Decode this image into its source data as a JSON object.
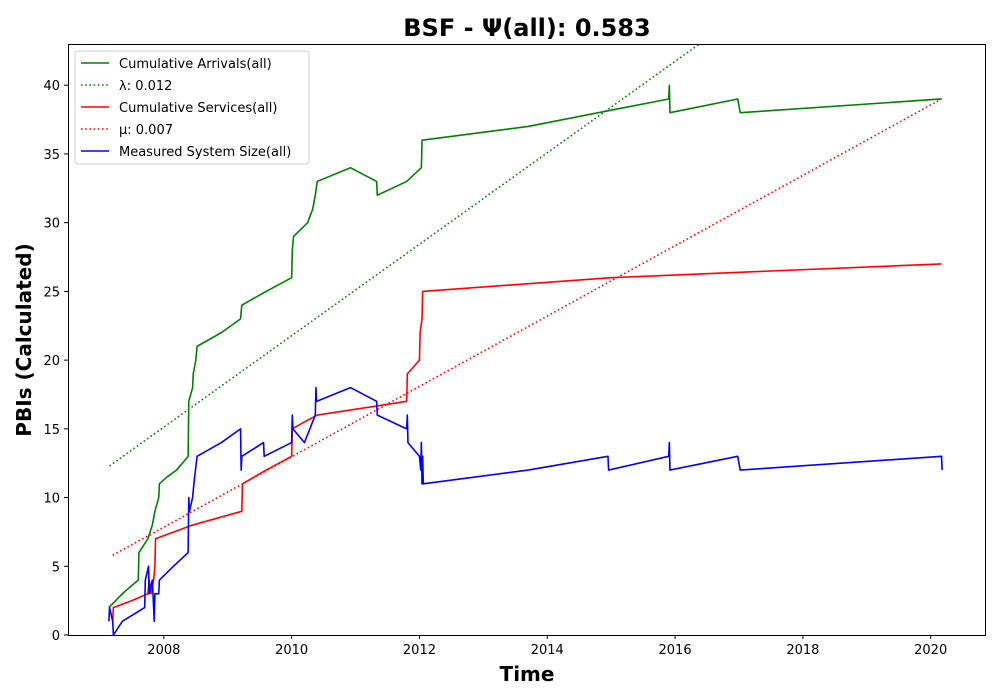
{
  "chart_data": {
    "type": "line",
    "title": "BSF -  Ψ(all): 0.583",
    "xlabel": "Time",
    "ylabel": "PBIs (Calculated)",
    "xlim": [
      2006.5,
      2020.85
    ],
    "ylim": [
      0,
      43
    ],
    "xticks": [
      2008,
      2010,
      2012,
      2014,
      2016,
      2018,
      2020
    ],
    "xtick_labels": [
      "2008",
      "2010",
      "2012",
      "2014",
      "2016",
      "2018",
      "2020"
    ],
    "yticks": [
      0,
      5,
      10,
      15,
      20,
      25,
      30,
      35,
      40
    ],
    "ytick_labels": [
      "0",
      "5",
      "10",
      "15",
      "20",
      "25",
      "30",
      "35",
      "40"
    ],
    "grid": false,
    "legend_position": "upper left",
    "series": [
      {
        "name": "Cumulative Arrivals(all)",
        "color": "#008000",
        "style": "solid",
        "points": [
          [
            2007.14,
            2
          ],
          [
            2007.35,
            3
          ],
          [
            2007.6,
            4
          ],
          [
            2007.61,
            6
          ],
          [
            2007.75,
            7
          ],
          [
            2007.82,
            8
          ],
          [
            2007.86,
            9
          ],
          [
            2007.92,
            10
          ],
          [
            2007.93,
            11
          ],
          [
            2008.05,
            11.5
          ],
          [
            2008.2,
            12
          ],
          [
            2008.38,
            13
          ],
          [
            2008.39,
            17
          ],
          [
            2008.45,
            18
          ],
          [
            2008.46,
            19
          ],
          [
            2008.5,
            20
          ],
          [
            2008.52,
            21
          ],
          [
            2008.9,
            22
          ],
          [
            2009.2,
            23
          ],
          [
            2009.22,
            24
          ],
          [
            2009.6,
            25
          ],
          [
            2010.0,
            26
          ],
          [
            2010.01,
            28
          ],
          [
            2010.03,
            29
          ],
          [
            2010.25,
            30
          ],
          [
            2010.33,
            31
          ],
          [
            2010.37,
            32
          ],
          [
            2010.4,
            33
          ],
          [
            2010.92,
            34
          ],
          [
            2011.33,
            33
          ],
          [
            2011.34,
            32
          ],
          [
            2011.8,
            33
          ],
          [
            2012.03,
            34
          ],
          [
            2012.04,
            36
          ],
          [
            2013.7,
            37
          ],
          [
            2015.9,
            39
          ],
          [
            2015.91,
            40
          ],
          [
            2015.92,
            38
          ],
          [
            2016.98,
            39
          ],
          [
            2017.02,
            38
          ],
          [
            2020.17,
            39
          ]
        ]
      },
      {
        "name": "λ: 0.012",
        "color": "#008000",
        "style": "dotted",
        "points": [
          [
            2007.15,
            12.3
          ],
          [
            2016.38,
            43
          ]
        ]
      },
      {
        "name": "Cumulative Services(all)",
        "color": "#ff0000",
        "style": "solid",
        "points": [
          [
            2007.2,
            1
          ],
          [
            2007.21,
            2
          ],
          [
            2007.5,
            2.5
          ],
          [
            2007.75,
            3
          ],
          [
            2007.77,
            4
          ],
          [
            2007.8,
            3
          ],
          [
            2007.84,
            4
          ],
          [
            2007.86,
            5
          ],
          [
            2007.87,
            7
          ],
          [
            2008.45,
            8
          ],
          [
            2009.22,
            9
          ],
          [
            2009.23,
            11
          ],
          [
            2009.6,
            12
          ],
          [
            2010.0,
            13
          ],
          [
            2010.01,
            15
          ],
          [
            2010.2,
            15.5
          ],
          [
            2010.4,
            16
          ],
          [
            2011.8,
            17
          ],
          [
            2011.81,
            19
          ],
          [
            2012.0,
            20
          ],
          [
            2012.01,
            22
          ],
          [
            2012.04,
            23
          ],
          [
            2012.05,
            25
          ],
          [
            2015.0,
            26
          ],
          [
            2020.17,
            27
          ]
        ]
      },
      {
        "name": "μ: 0.007",
        "color": "#ff0000",
        "style": "dotted",
        "points": [
          [
            2007.2,
            5.8
          ],
          [
            2020.17,
            39
          ]
        ]
      },
      {
        "name": "Measured System Size(all)",
        "color": "#0000ff",
        "style": "solid",
        "points": [
          [
            2007.14,
            1
          ],
          [
            2007.15,
            2
          ],
          [
            2007.2,
            1
          ],
          [
            2007.21,
            0
          ],
          [
            2007.35,
            1
          ],
          [
            2007.7,
            2
          ],
          [
            2007.71,
            4
          ],
          [
            2007.76,
            5
          ],
          [
            2007.77,
            3
          ],
          [
            2007.82,
            4
          ],
          [
            2007.84,
            2
          ],
          [
            2007.85,
            1
          ],
          [
            2007.86,
            3
          ],
          [
            2007.92,
            3
          ],
          [
            2007.93,
            4
          ],
          [
            2008.15,
            5
          ],
          [
            2008.38,
            6
          ],
          [
            2008.39,
            10
          ],
          [
            2008.4,
            9
          ],
          [
            2008.45,
            10
          ],
          [
            2008.47,
            11
          ],
          [
            2008.52,
            13
          ],
          [
            2008.9,
            14
          ],
          [
            2009.2,
            15
          ],
          [
            2009.21,
            12
          ],
          [
            2009.22,
            13
          ],
          [
            2009.56,
            14
          ],
          [
            2009.57,
            13
          ],
          [
            2010.0,
            14
          ],
          [
            2010.01,
            16
          ],
          [
            2010.02,
            15
          ],
          [
            2010.2,
            14
          ],
          [
            2010.37,
            16
          ],
          [
            2010.38,
            18
          ],
          [
            2010.39,
            17
          ],
          [
            2010.92,
            18
          ],
          [
            2011.33,
            17
          ],
          [
            2011.34,
            16
          ],
          [
            2011.8,
            15
          ],
          [
            2011.81,
            16
          ],
          [
            2011.82,
            14
          ],
          [
            2012.0,
            13
          ],
          [
            2012.02,
            12
          ],
          [
            2012.03,
            14
          ],
          [
            2012.04,
            11
          ],
          [
            2012.05,
            13
          ],
          [
            2012.06,
            11
          ],
          [
            2013.7,
            12
          ],
          [
            2014.95,
            13
          ],
          [
            2014.96,
            12
          ],
          [
            2015.9,
            13
          ],
          [
            2015.91,
            14
          ],
          [
            2015.92,
            12
          ],
          [
            2016.98,
            13
          ],
          [
            2017.02,
            12
          ],
          [
            2020.17,
            13
          ],
          [
            2020.18,
            12
          ]
        ]
      }
    ]
  }
}
